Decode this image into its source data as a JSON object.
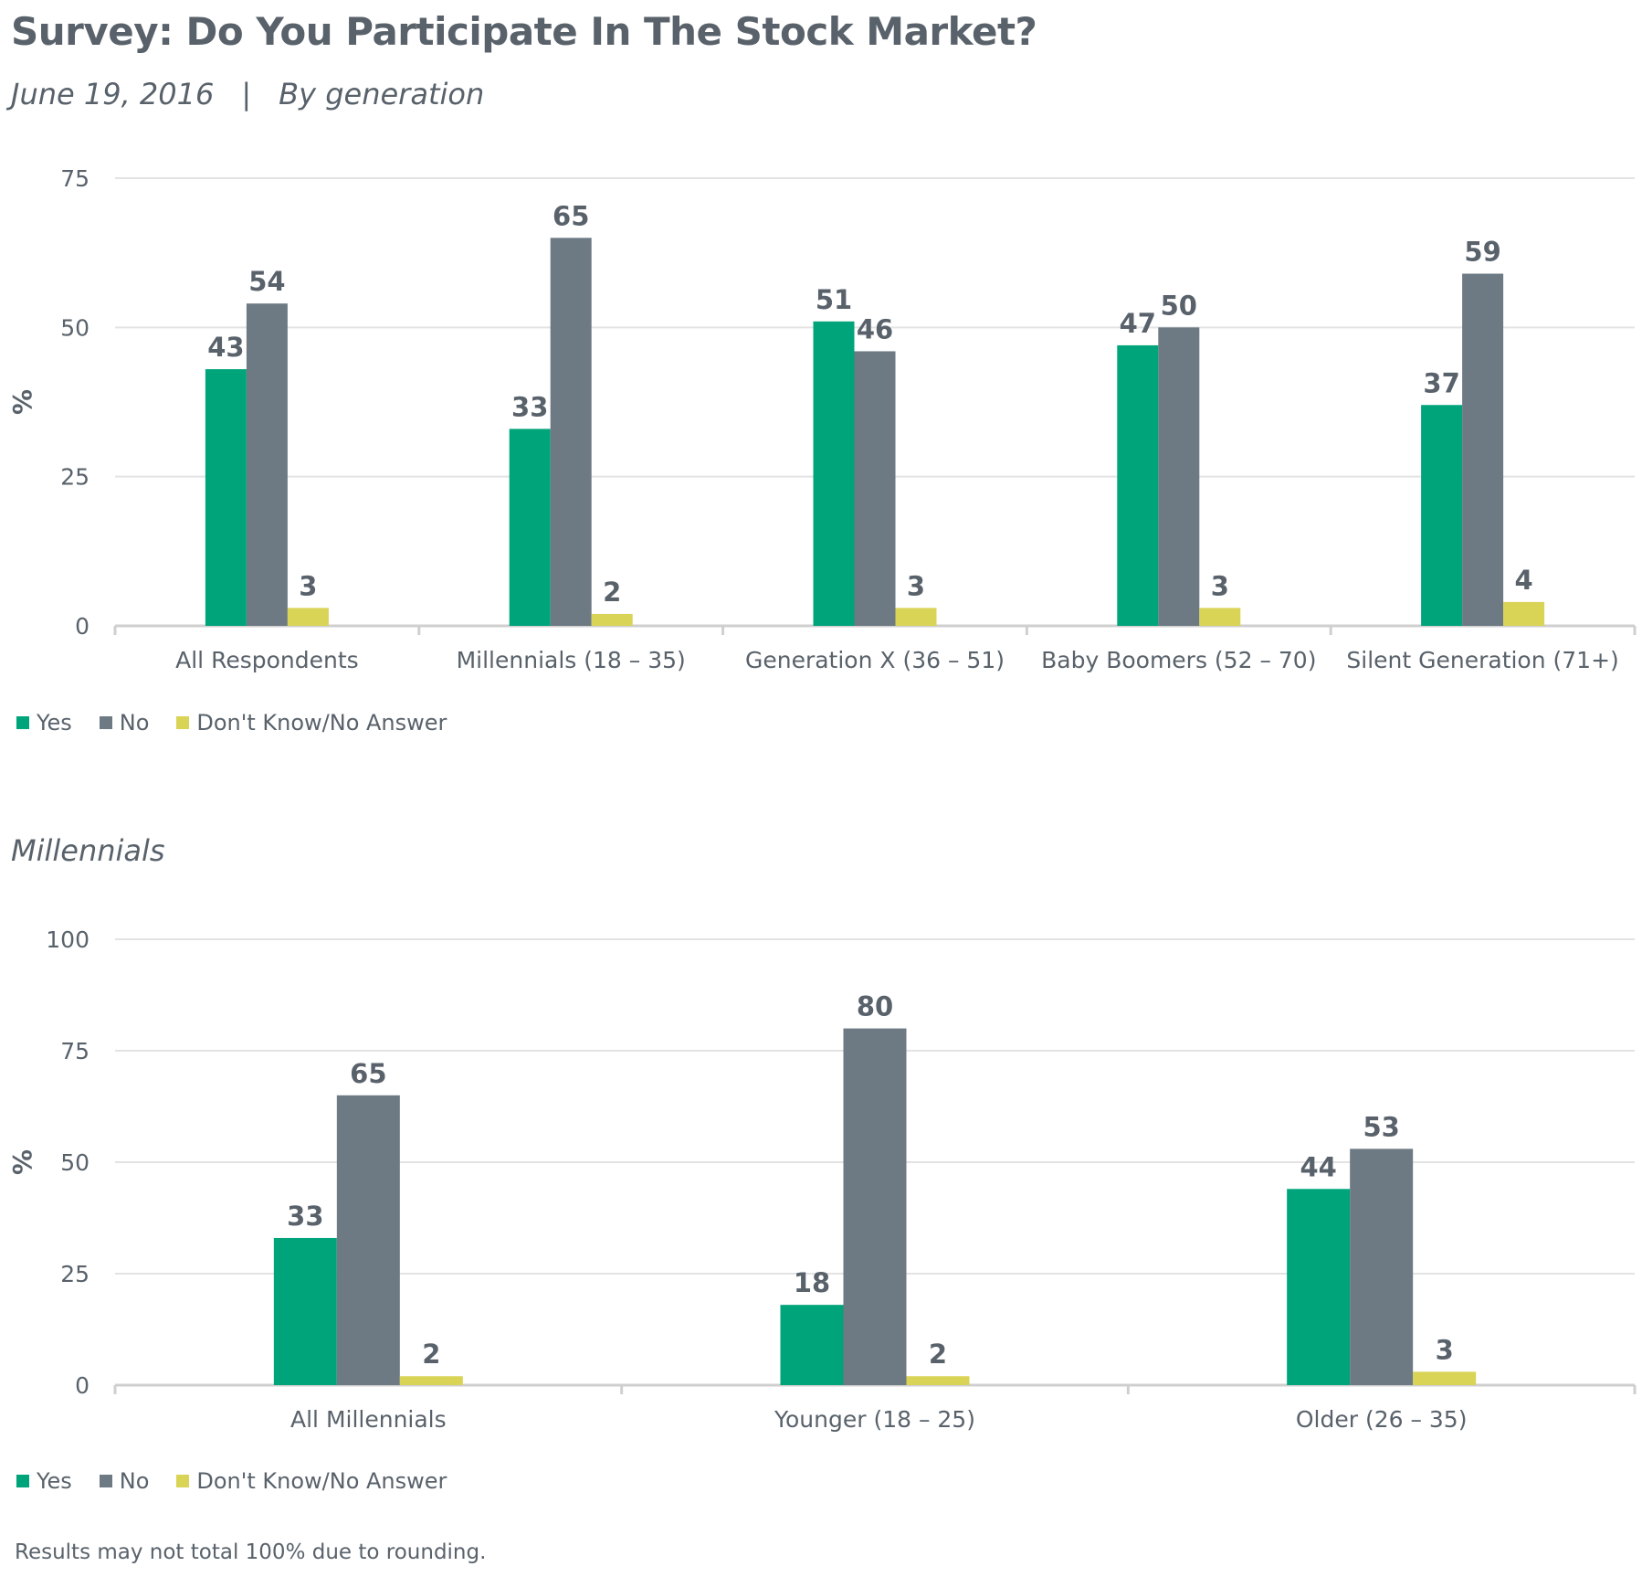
{
  "title": "Survey: Do You Participate In The Stock Market?",
  "subtitle_date": "June 19, 2016",
  "subtitle_separator": "|",
  "subtitle_group": "By generation",
  "section2_title": "Millennials",
  "footnote": "Results may not total 100% due to rounding.",
  "colors": {
    "yes": "#00a47a",
    "no": "#6d7a84",
    "dk": "#d9d356",
    "grid": "#e3e3e3",
    "axis": "#cfcfcf",
    "text": "#59626b"
  },
  "chart_data": [
    {
      "type": "bar",
      "title": "",
      "xlabel": "",
      "ylabel": "%",
      "ylim": [
        0,
        75
      ],
      "yticks": [
        0,
        25,
        50,
        75
      ],
      "grid": true,
      "legend": "bottom-left",
      "categories": [
        "All Respondents",
        "Millennials (18 – 35)",
        "Generation X (36 – 51)",
        "Baby Boomers (52 – 70)",
        "Silent Generation (71+)"
      ],
      "series": [
        {
          "name": "Yes",
          "color_key": "yes",
          "values": [
            43,
            33,
            51,
            47,
            37
          ]
        },
        {
          "name": "No",
          "color_key": "no",
          "values": [
            54,
            65,
            46,
            50,
            59
          ]
        },
        {
          "name": "Don't Know/No Answer",
          "color_key": "dk",
          "values": [
            3,
            2,
            3,
            3,
            4
          ]
        }
      ]
    },
    {
      "type": "bar",
      "title": "",
      "xlabel": "",
      "ylabel": "%",
      "ylim": [
        0,
        100
      ],
      "yticks": [
        0,
        25,
        50,
        75,
        100
      ],
      "grid": true,
      "legend": "bottom-left",
      "categories": [
        "All Millennials",
        "Younger (18 – 25)",
        "Older (26 – 35)"
      ],
      "series": [
        {
          "name": "Yes",
          "color_key": "yes",
          "values": [
            33,
            18,
            44
          ]
        },
        {
          "name": "No",
          "color_key": "no",
          "values": [
            65,
            80,
            53
          ]
        },
        {
          "name": "Don't Know/No Answer",
          "color_key": "dk",
          "values": [
            2,
            2,
            3
          ]
        }
      ]
    }
  ]
}
